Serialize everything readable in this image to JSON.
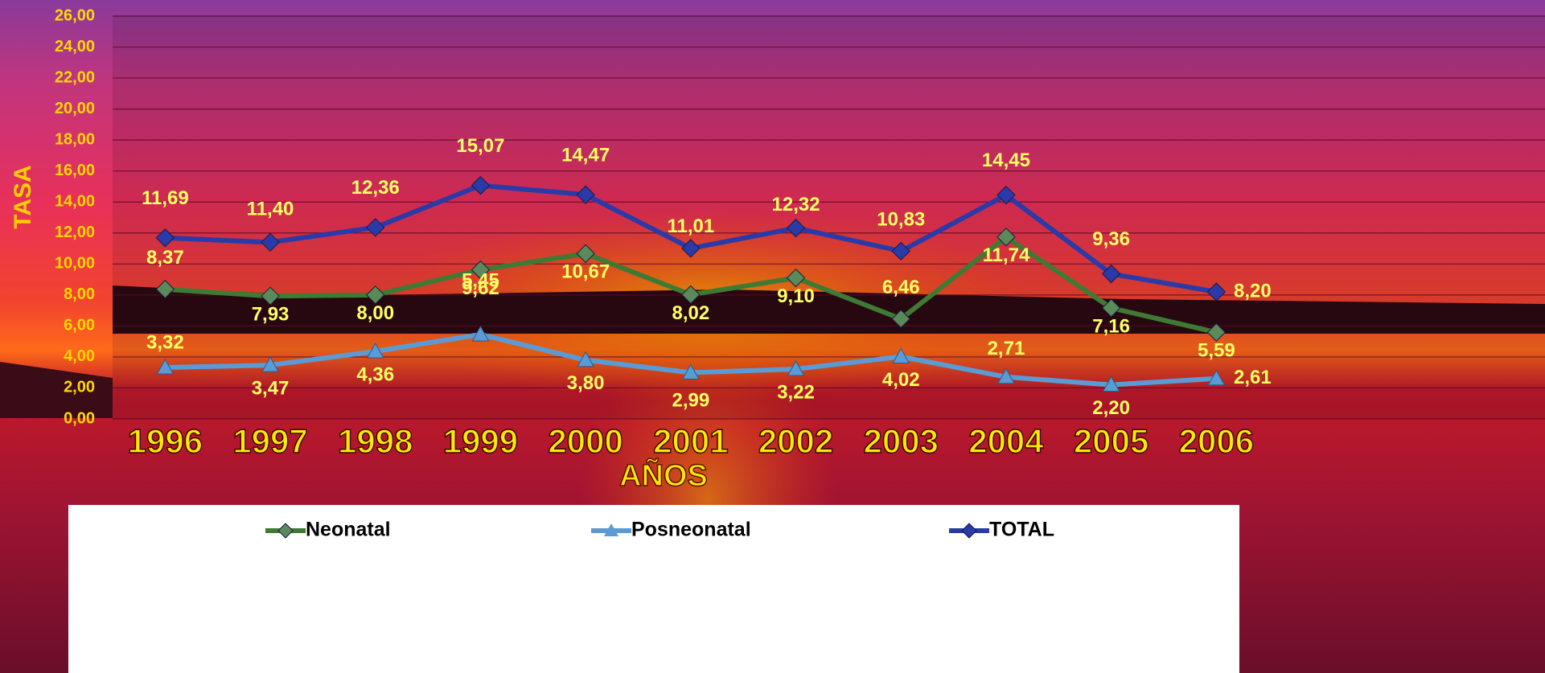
{
  "chart_data": {
    "type": "line",
    "y_label": "TASA",
    "x_label": "AÑOS",
    "categories": [
      "1996",
      "1997",
      "1998",
      "1999",
      "2000",
      "2001",
      "2002",
      "2003",
      "2004",
      "2005",
      "2006"
    ],
    "ylim": [
      0,
      26
    ],
    "yticks": [
      {
        "value": 0,
        "label": "0,00"
      },
      {
        "value": 2,
        "label": "2,00"
      },
      {
        "value": 4,
        "label": "4,00"
      },
      {
        "value": 6,
        "label": "6,00"
      },
      {
        "value": 8,
        "label": "8,00"
      },
      {
        "value": 10,
        "label": "10,00"
      },
      {
        "value": 12,
        "label": "12,00"
      },
      {
        "value": 14,
        "label": "14,00"
      },
      {
        "value": 16,
        "label": "16,00"
      },
      {
        "value": 18,
        "label": "18,00"
      },
      {
        "value": 20,
        "label": "20,00"
      },
      {
        "value": 22,
        "label": "22,00"
      },
      {
        "value": 24,
        "label": "24,00"
      },
      {
        "value": 26,
        "label": "26,00"
      }
    ],
    "grid": true,
    "legend": "bottom",
    "series": [
      {
        "name": "Neonatal",
        "color": "#3f7a34",
        "marker": "diamond",
        "values": [
          8.37,
          7.93,
          8.0,
          9.62,
          10.67,
          8.02,
          9.1,
          6.46,
          11.74,
          7.16,
          5.59
        ],
        "value_labels": [
          "8,37",
          "7,93",
          "8,00",
          "9,62",
          "10,67",
          "8,02",
          "9,10",
          "6,46",
          "11,74",
          "7,16",
          "5,59"
        ]
      },
      {
        "name": "Posneonatal",
        "color": "#5b9bd5",
        "marker": "triangle",
        "values": [
          3.32,
          3.47,
          4.36,
          5.45,
          3.8,
          2.99,
          3.22,
          4.02,
          2.71,
          2.2,
          2.61
        ],
        "value_labels": [
          "3,32",
          "3,47",
          "4,36",
          "5,45",
          "3,80",
          "2,99",
          "3,22",
          "4,02",
          "2,71",
          "2,20",
          "2,61"
        ]
      },
      {
        "name": "TOTAL",
        "color": "#2a3aa8",
        "marker": "diamond",
        "values": [
          11.69,
          11.4,
          12.36,
          15.07,
          14.47,
          11.01,
          12.32,
          10.83,
          14.45,
          9.36,
          8.2
        ],
        "value_labels": [
          "11,69",
          "11,40",
          "12,36",
          "15,07",
          "14,47",
          "11,01",
          "12,32",
          "10,83",
          "14,45",
          "9,36",
          "8,20"
        ]
      }
    ]
  }
}
